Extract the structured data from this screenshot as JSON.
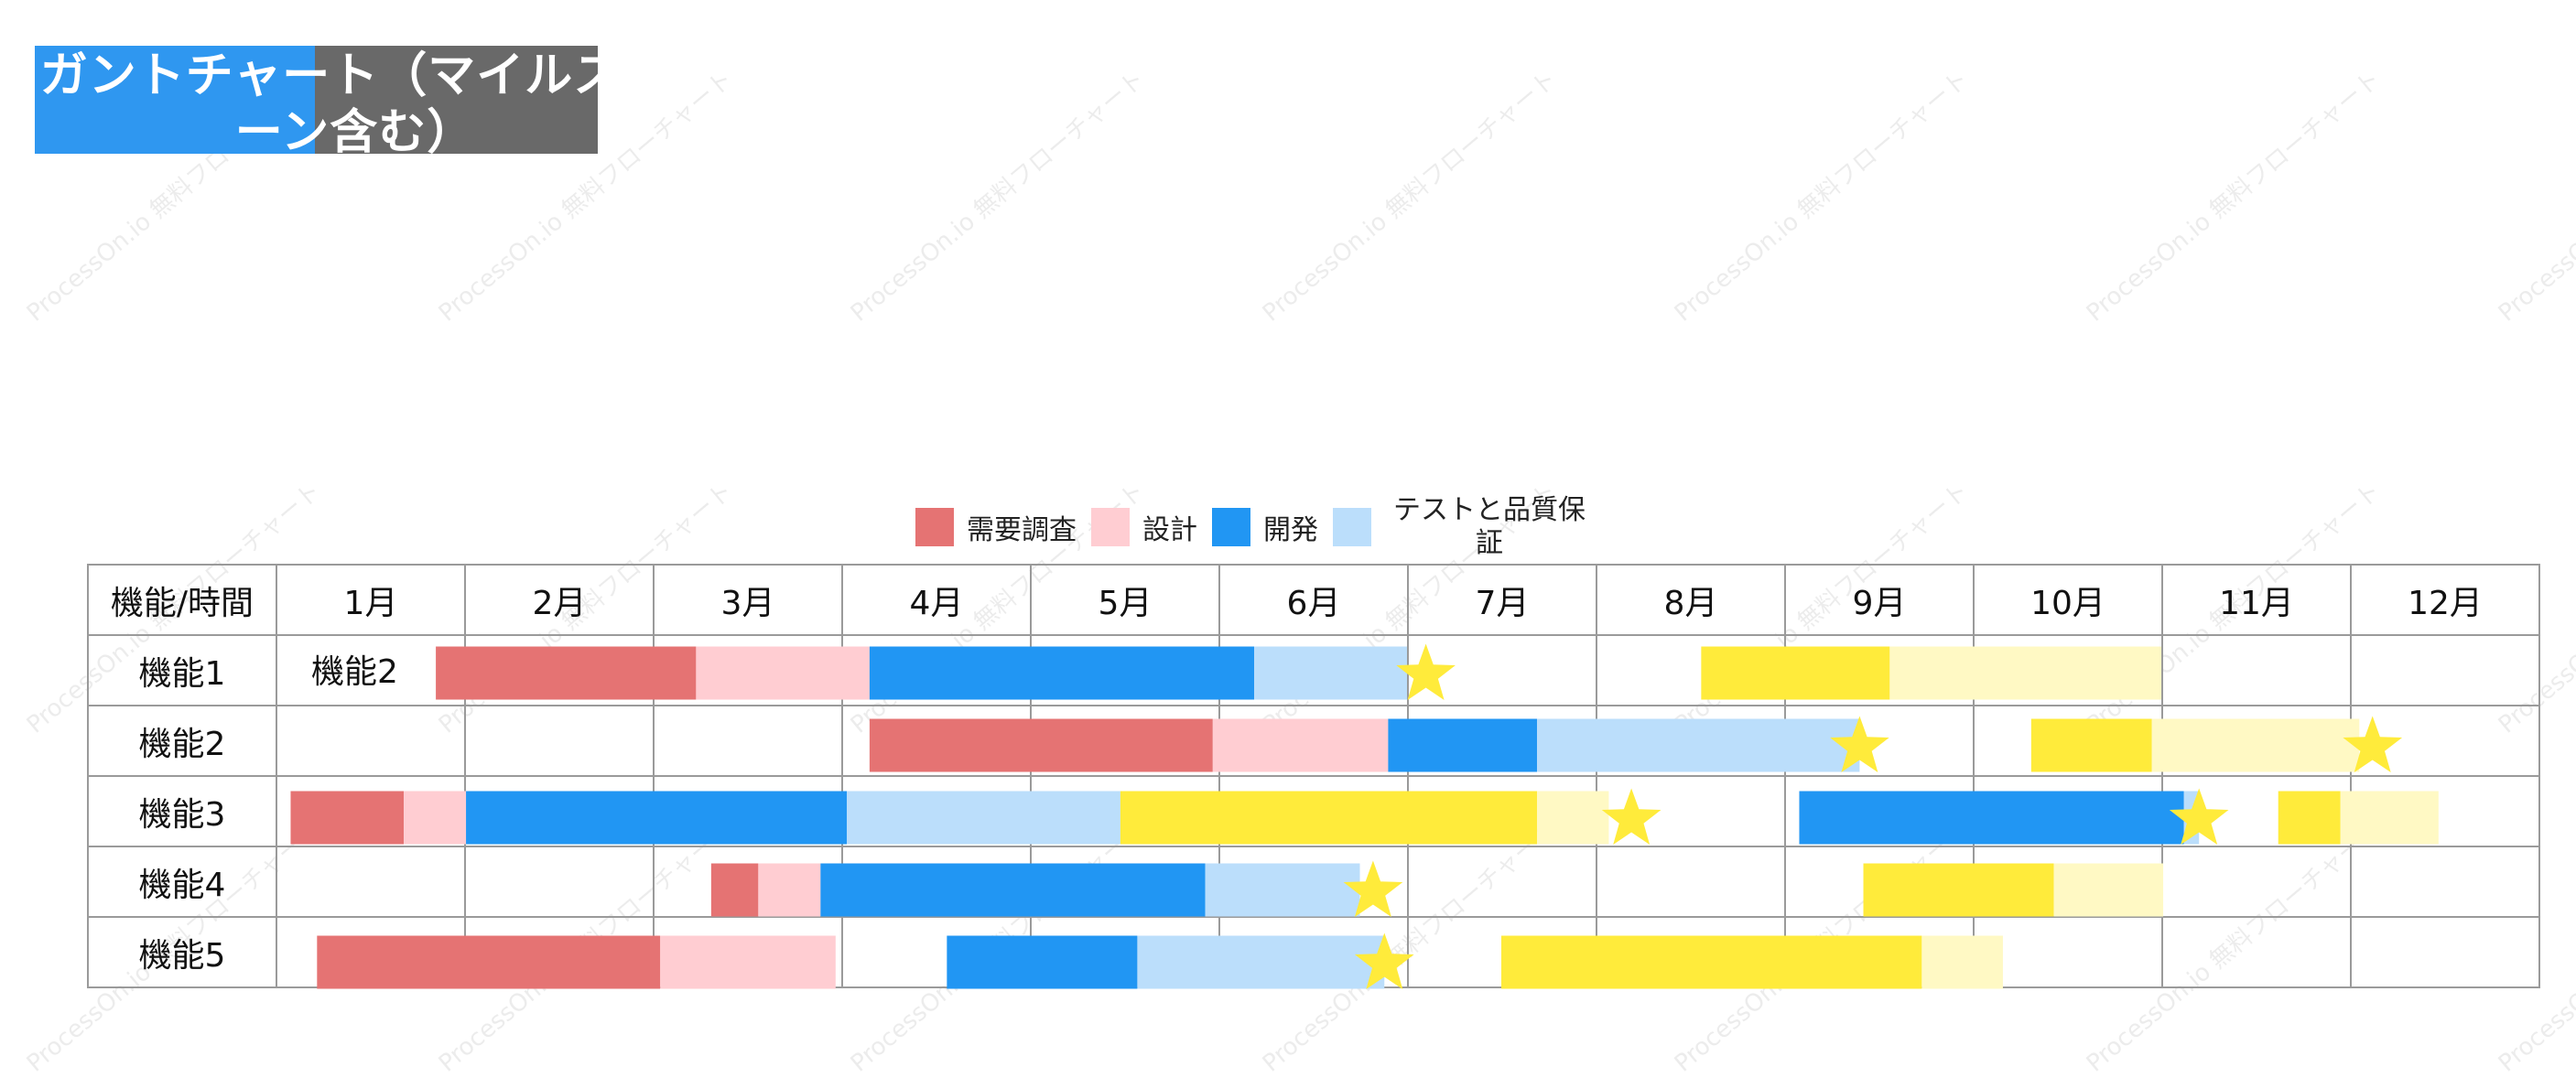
{
  "watermark": "ProcessOn.io 無料フローチャート",
  "title": "ガントチャート（マイルストーン含む）",
  "legend": [
    {
      "label": "需要調査",
      "color": "#e57373"
    },
    {
      "label": "設計",
      "color": "#ffcdd2"
    },
    {
      "label": "開発",
      "color": "#2196f3"
    },
    {
      "label": "テストと品質保証",
      "color": "#bbdefb"
    }
  ],
  "table": {
    "corner": "機能/時間",
    "months": [
      "1月",
      "2月",
      "3月",
      "4月",
      "5月",
      "6月",
      "7月",
      "8月",
      "9月",
      "10月",
      "11月",
      "12月"
    ],
    "rows": [
      "機能1",
      "機能2",
      "機能3",
      "機能4",
      "機能5"
    ],
    "cell_note": "機能2"
  },
  "colors": {
    "research": "#e57373",
    "design": "#ffcdd2",
    "dev": "#2196f3",
    "test": "#bbdefb",
    "phase2": "#ffeb3b",
    "phase2_light": "#fff9c4",
    "milestone": "#ffeb3b",
    "grid": "#9a9a9a"
  },
  "chart_data": {
    "type": "gantt",
    "time_unit": "month",
    "rows": [
      {
        "name": "機能1",
        "segments": [
          {
            "phase": "research",
            "start": 1.85,
            "end": 3.23
          },
          {
            "phase": "design",
            "start": 3.23,
            "end": 4.15
          },
          {
            "phase": "dev",
            "start": 4.15,
            "end": 6.19
          },
          {
            "phase": "test",
            "start": 6.19,
            "end": 7.0
          },
          {
            "phase": "phase2",
            "start": 8.56,
            "end": 9.56
          },
          {
            "phase": "phase2_light",
            "start": 9.56,
            "end": 11.0
          }
        ],
        "milestones": [
          7.1
        ]
      },
      {
        "name": "機能2",
        "segments": [
          {
            "phase": "research",
            "start": 4.15,
            "end": 5.97
          },
          {
            "phase": "design",
            "start": 5.97,
            "end": 6.9
          },
          {
            "phase": "dev",
            "start": 6.9,
            "end": 7.69
          },
          {
            "phase": "test",
            "start": 7.69,
            "end": 9.4
          },
          {
            "phase": "phase2",
            "start": 10.31,
            "end": 10.95
          },
          {
            "phase": "phase2_light",
            "start": 10.95,
            "end": 12.05
          }
        ],
        "milestones": [
          9.4,
          12.12
        ]
      },
      {
        "name": "機能3",
        "segments": [
          {
            "phase": "research",
            "start": 1.08,
            "end": 1.68
          },
          {
            "phase": "design",
            "start": 1.68,
            "end": 2.01
          },
          {
            "phase": "dev",
            "start": 2.01,
            "end": 4.03
          },
          {
            "phase": "test",
            "start": 4.03,
            "end": 5.48
          },
          {
            "phase": "phase2",
            "start": 5.48,
            "end": 7.69
          },
          {
            "phase": "phase2_light",
            "start": 7.69,
            "end": 8.07
          },
          {
            "phase": "dev",
            "start": 9.08,
            "end": 11.12
          },
          {
            "phase": "test",
            "start": 11.12,
            "end": 11.2
          },
          {
            "phase": "phase2",
            "start": 11.62,
            "end": 11.95
          },
          {
            "phase": "phase2_light",
            "start": 11.95,
            "end": 12.47
          }
        ],
        "milestones": [
          8.19,
          11.2
        ]
      },
      {
        "name": "機能4",
        "segments": [
          {
            "phase": "research",
            "start": 3.31,
            "end": 3.56
          },
          {
            "phase": "design",
            "start": 3.56,
            "end": 3.89
          },
          {
            "phase": "dev",
            "start": 3.89,
            "end": 5.93
          },
          {
            "phase": "test",
            "start": 5.93,
            "end": 6.75
          },
          {
            "phase": "phase2",
            "start": 9.42,
            "end": 10.43
          },
          {
            "phase": "phase2_light",
            "start": 10.43,
            "end": 11.01
          }
        ],
        "milestones": [
          6.82
        ]
      },
      {
        "name": "機能5",
        "segments": [
          {
            "phase": "research",
            "start": 1.22,
            "end": 3.04
          },
          {
            "phase": "design",
            "start": 3.04,
            "end": 3.97
          },
          {
            "phase": "dev",
            "start": 4.56,
            "end": 5.57
          },
          {
            "phase": "test",
            "start": 5.57,
            "end": 6.88
          },
          {
            "phase": "phase2",
            "start": 7.5,
            "end": 9.73
          },
          {
            "phase": "phase2_light",
            "start": 9.73,
            "end": 10.16
          }
        ],
        "milestones": [
          6.88
        ]
      }
    ]
  }
}
